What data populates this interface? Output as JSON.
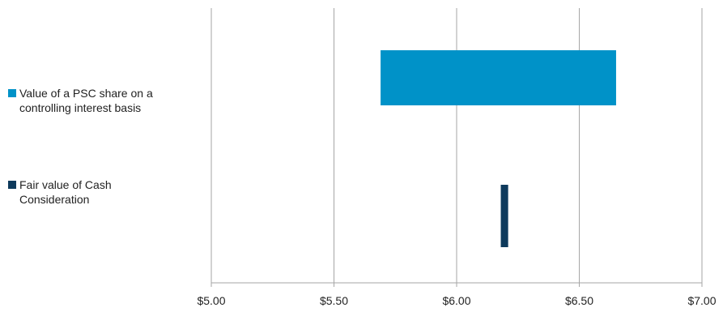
{
  "chart_data": {
    "type": "bar",
    "orientation": "horizontal-range",
    "x_ticks": [
      "$5.00",
      "$5.50",
      "$6.00",
      "$6.50",
      "$7.00"
    ],
    "x_tick_values": [
      5.0,
      5.5,
      6.0,
      6.5,
      7.0
    ],
    "xlim": [
      5.0,
      7.0
    ],
    "grid": true,
    "legend_position": "left",
    "series": [
      {
        "name": "Value of a PSC share on a\ncontrolling interest basis",
        "range": [
          5.69,
          6.65
        ],
        "color": "#0092c8"
      },
      {
        "name": "Fair value of Cash\nConsideration",
        "range": [
          6.18,
          6.21
        ],
        "color": "#0e3a5c"
      }
    ]
  }
}
